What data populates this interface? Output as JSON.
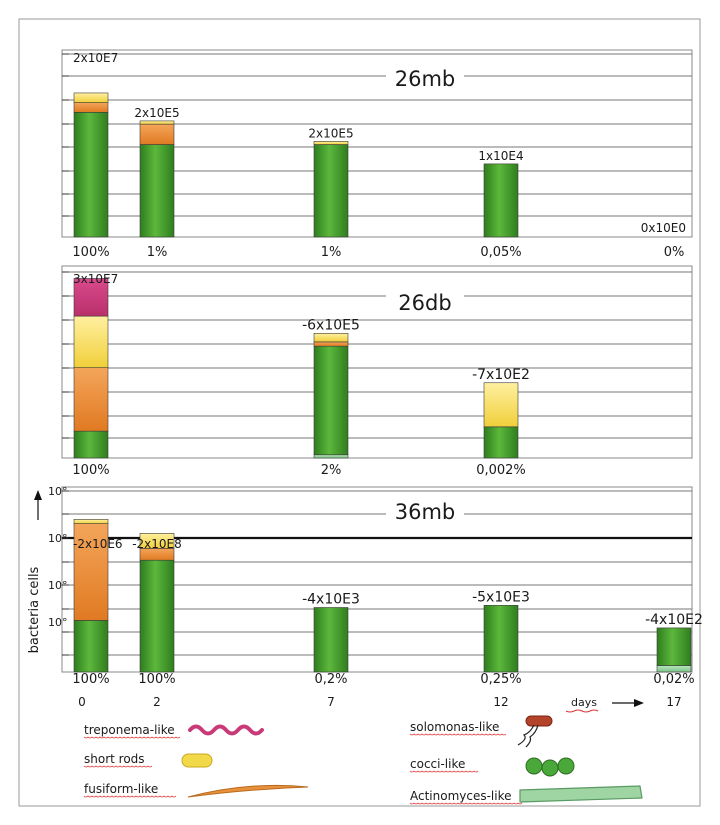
{
  "y_axis_label": "bacteria cells",
  "days_label": "days",
  "chart_data": [
    {
      "type": "bar",
      "stacked": true,
      "title": "26mb",
      "x": [
        0,
        2,
        7,
        12,
        17
      ],
      "value_labels": [
        "2x10E7",
        "2x10E5",
        "2x10E5",
        "1x10E4",
        "0x10E0"
      ],
      "percent_labels": [
        "100%",
        "1%",
        "1%",
        "0,05%",
        "0%"
      ],
      "series": [
        {
          "name": "Actinomyces-like",
          "values": [
            0,
            0,
            0,
            0,
            0
          ]
        },
        {
          "name": "cocci-like",
          "values": [
            5.8,
            4.3,
            4.3,
            3.4,
            0
          ]
        },
        {
          "name": "fusiform-like",
          "values": [
            0.45,
            0.95,
            0,
            0,
            0
          ]
        },
        {
          "name": "short rods",
          "values": [
            0.45,
            0.15,
            0.15,
            0,
            0
          ]
        },
        {
          "name": "treponema-like",
          "values": [
            0,
            0,
            0,
            0,
            0
          ]
        }
      ]
    },
    {
      "type": "bar",
      "stacked": true,
      "title": "26db",
      "x": [
        0,
        7,
        12
      ],
      "value_labels": [
        "3x10E7",
        "-6x10E5",
        "-7x10E2"
      ],
      "percent_labels": [
        "100%",
        "2%",
        "0,002%"
      ],
      "series": [
        {
          "name": "Actinomyces-like",
          "values": [
            0,
            0.15,
            0
          ]
        },
        {
          "name": "cocci-like",
          "values": [
            1.25,
            5.05,
            1.45
          ]
        },
        {
          "name": "fusiform-like",
          "values": [
            2.95,
            0.2,
            0
          ]
        },
        {
          "name": "short rods",
          "values": [
            2.4,
            0.4,
            2.05
          ]
        },
        {
          "name": "treponema-like",
          "values": [
            1.75,
            0,
            0
          ]
        }
      ]
    },
    {
      "type": "bar",
      "stacked": true,
      "title": "36mb",
      "x": [
        0,
        2,
        7,
        12,
        17
      ],
      "y_tick_labels": [
        "10°",
        "10°",
        "10°",
        "10°"
      ],
      "value_labels": [
        "-2x10E6",
        "-2x10E8",
        "-4x10E3",
        "-5x10E3",
        "-4x10E2"
      ],
      "percent_labels": [
        "100%",
        "100%",
        "0,2%",
        "0,25%",
        "0,02%"
      ],
      "series": [
        {
          "name": "Actinomyces-like",
          "values": [
            0,
            0,
            0,
            0,
            0.3
          ]
        },
        {
          "name": "cocci-like",
          "values": [
            2.4,
            5.2,
            3.0,
            3.1,
            1.75
          ]
        },
        {
          "name": "fusiform-like",
          "values": [
            4.5,
            0.55,
            0,
            0,
            0
          ]
        },
        {
          "name": "short rods",
          "values": [
            0.2,
            0.7,
            0,
            0,
            0
          ]
        },
        {
          "name": "treponema-like",
          "values": [
            0,
            0,
            0,
            0,
            0
          ]
        }
      ]
    }
  ],
  "x_tick_labels": [
    "0",
    "2",
    "7",
    "12",
    "17"
  ],
  "legend": [
    {
      "label": "treponema-like",
      "icon": "wavy-spiral-icon",
      "color": "#c93a78"
    },
    {
      "label": "short rods",
      "icon": "capsule-rod-icon",
      "color": "#f2d94a"
    },
    {
      "label": "fusiform-like",
      "icon": "spindle-icon",
      "color": "#e8913a"
    },
    {
      "label": "solomonas-like",
      "icon": "flagellated-rod-icon",
      "color": "#b3442a"
    },
    {
      "label": "cocci-like",
      "icon": "cocci-chain-icon",
      "color": "#4aa83a"
    },
    {
      "label": "Actinomyces-like",
      "icon": "filament-icon",
      "color": "#9fd4a3"
    }
  ],
  "colors": {
    "treponema-like": "#c93a78",
    "short rods": "#f2d94a",
    "fusiform-like": "#e8913a",
    "cocci-like": "#3f9a2a",
    "Actinomyces-like": "#8fcf9a"
  }
}
